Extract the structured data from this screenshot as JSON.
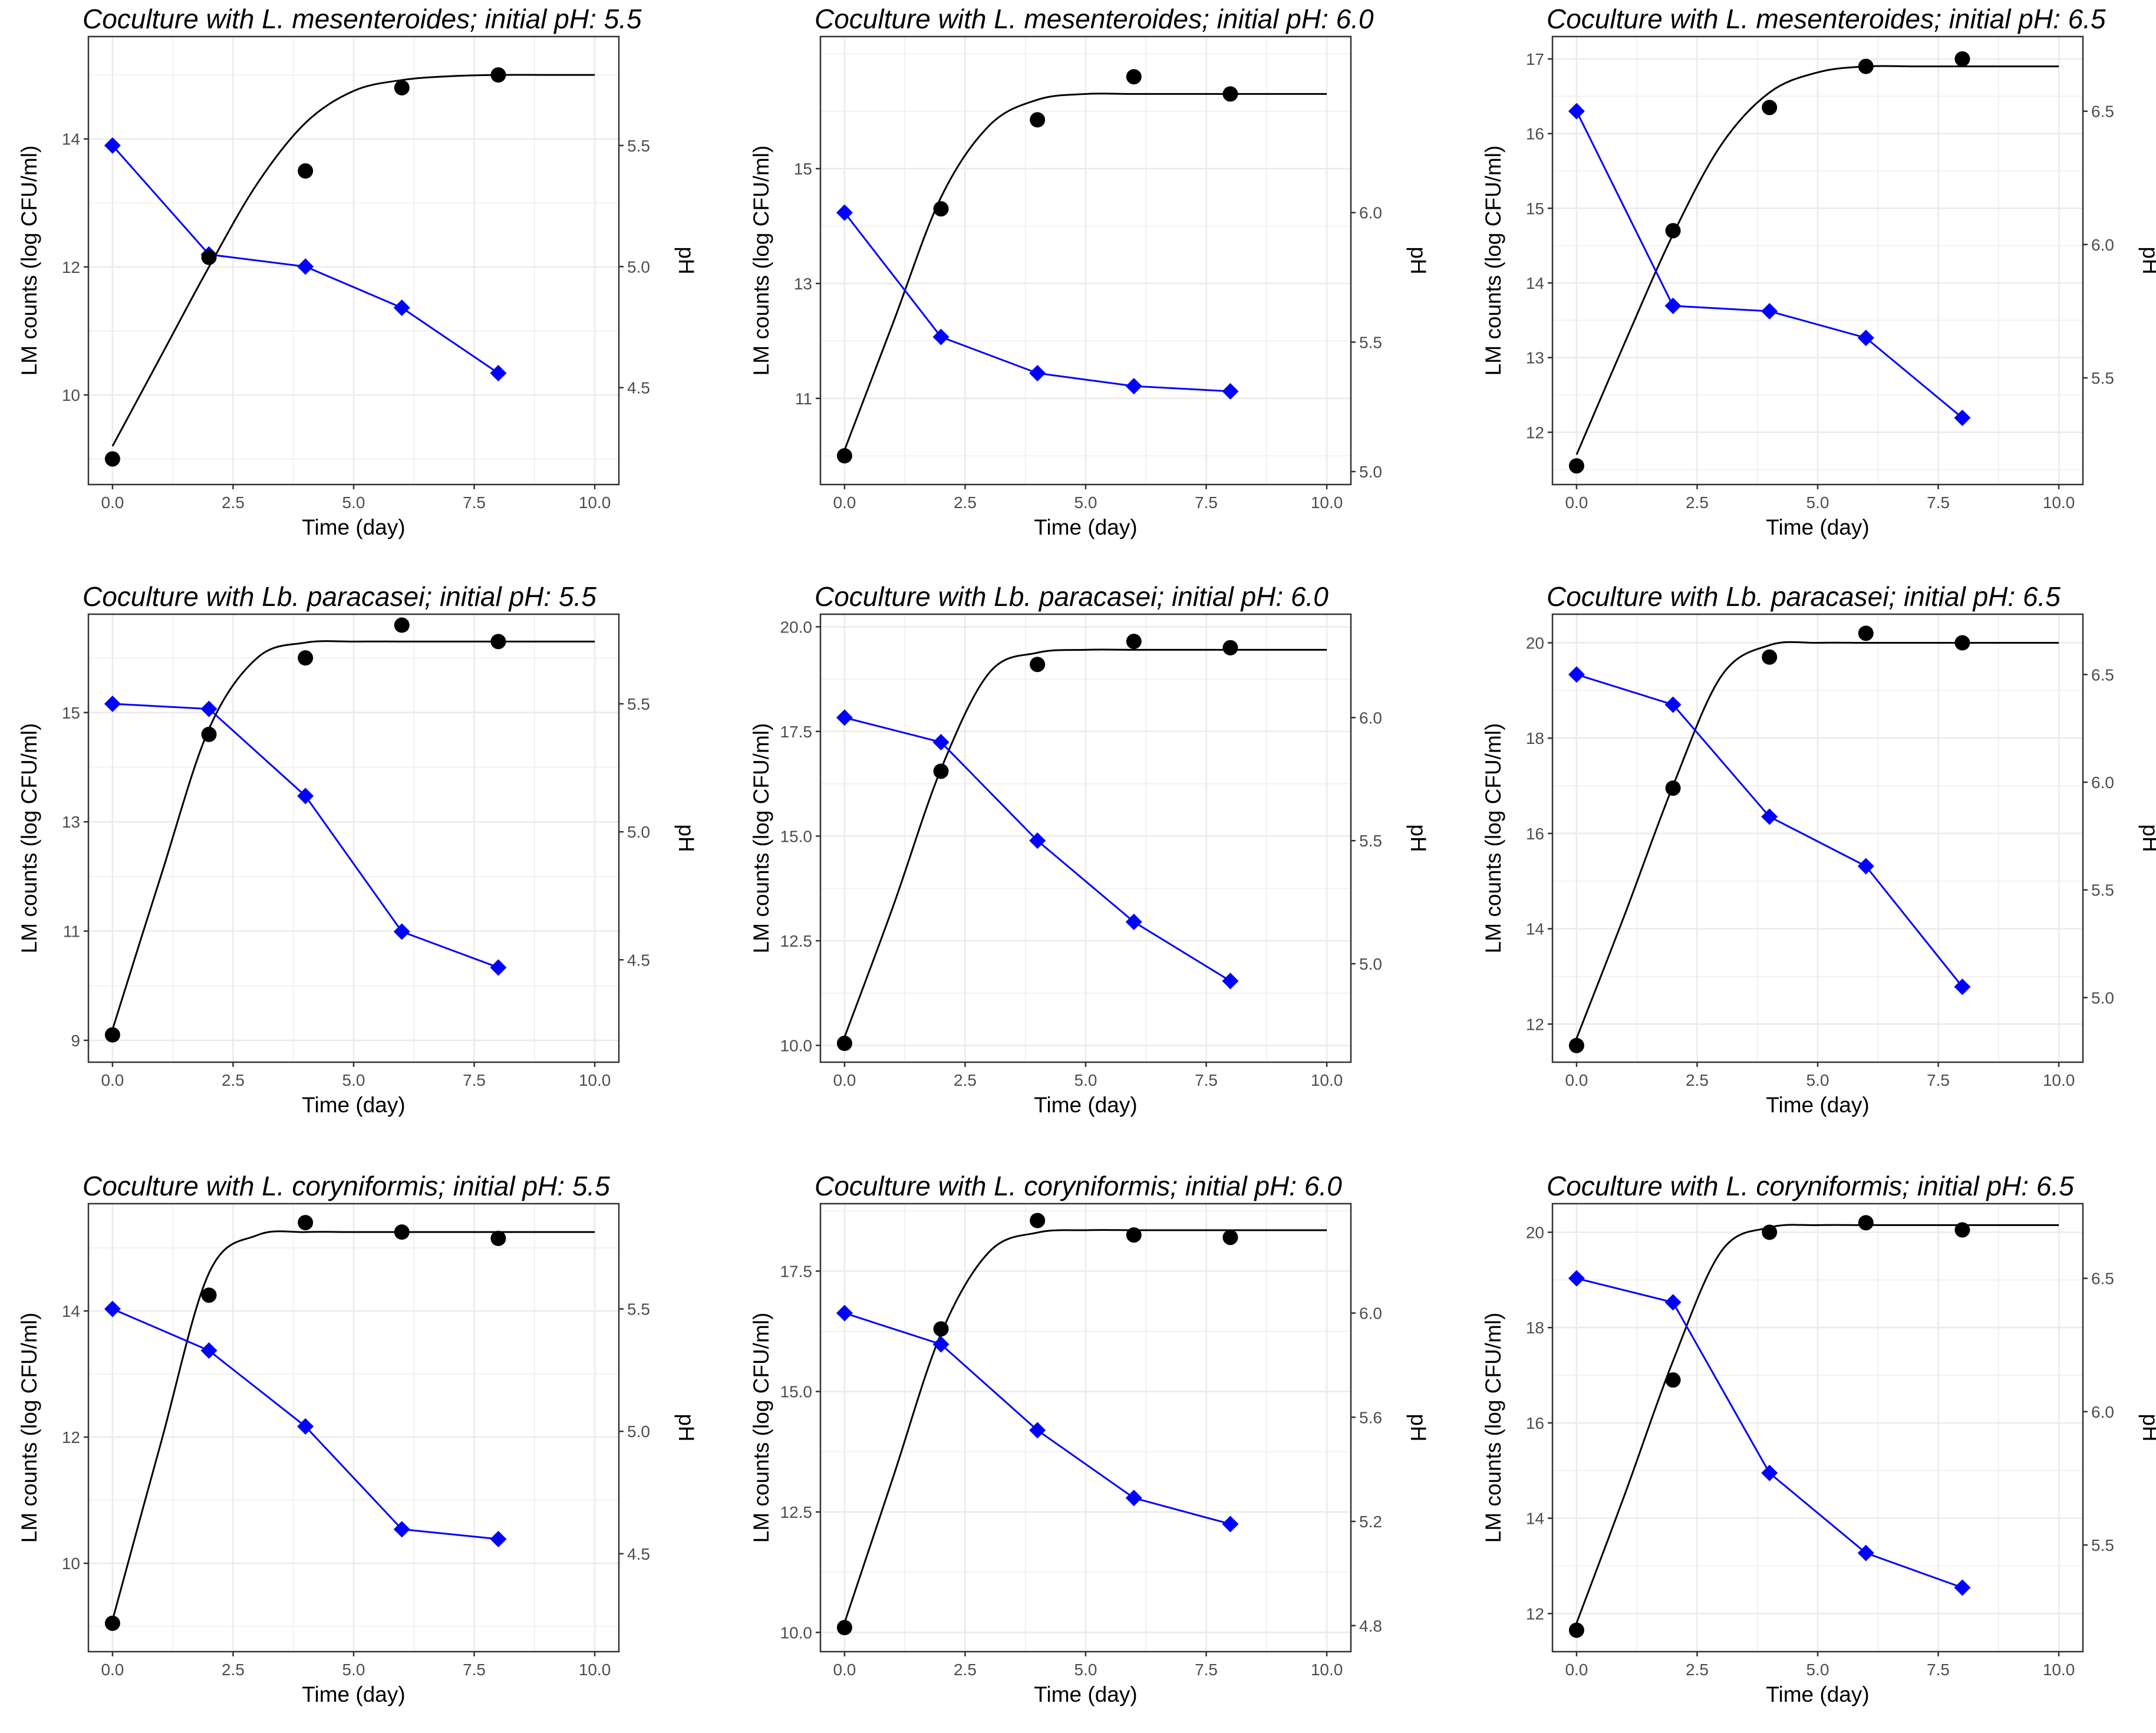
{
  "colors": {
    "count_series": "#000000",
    "ph_series": "#0000ff",
    "grid": "#ebebeb",
    "frame": "#333333"
  },
  "chart_data": [
    {
      "type": "line",
      "title": "Coculture with L. mesenteroides; initial pH: 5.5",
      "xlabel": "Time (day)",
      "ylabel": "LM counts (log CFU/ml)",
      "ylabel_right": "pH",
      "xlim": [
        -0.5,
        10.5
      ],
      "xticks": [
        0.0,
        2.5,
        5.0,
        7.5,
        10.0
      ],
      "xtick_labels": [
        "0.0",
        "2.5",
        "5.0",
        "7.5",
        "10.0"
      ],
      "ylim": [
        8.6,
        15.6
      ],
      "yticks": [
        10,
        12,
        14
      ],
      "ytick_labels": [
        "10",
        "12",
        "14"
      ],
      "y2lim": [
        4.1,
        5.95
      ],
      "y2ticks": [
        4.5,
        5.0,
        5.5
      ],
      "y2tick_labels": [
        "4.5",
        "5.0",
        "5.5"
      ],
      "grid": true,
      "legend": "none",
      "observed_counts": {
        "x": [
          0,
          2,
          4,
          6,
          8
        ],
        "y": [
          9.0,
          12.15,
          13.5,
          14.8,
          15.0
        ]
      },
      "fitted_counts": {
        "x": [
          0,
          1,
          2,
          3,
          4,
          5,
          6,
          7,
          8,
          9,
          10
        ],
        "y": [
          9.2,
          10.6,
          12.0,
          13.3,
          14.25,
          14.75,
          14.92,
          14.98,
          15.0,
          15.0,
          15.0
        ]
      },
      "ph": {
        "x": [
          0,
          2,
          4,
          6,
          8
        ],
        "y": [
          5.5,
          5.05,
          5.0,
          4.83,
          4.56
        ]
      }
    },
    {
      "type": "line",
      "title": "Coculture with L. mesenteroides; initial pH: 6.0",
      "xlabel": "Time (day)",
      "ylabel": "LM counts (log CFU/ml)",
      "ylabel_right": "pH",
      "xlim": [
        -0.5,
        10.5
      ],
      "xticks": [
        0.0,
        2.5,
        5.0,
        7.5,
        10.0
      ],
      "xtick_labels": [
        "0.0",
        "2.5",
        "5.0",
        "7.5",
        "10.0"
      ],
      "ylim": [
        9.5,
        17.3
      ],
      "yticks": [
        11,
        13,
        15
      ],
      "ytick_labels": [
        "11",
        "13",
        "15"
      ],
      "y2lim": [
        4.95,
        6.68
      ],
      "y2ticks": [
        5.0,
        5.5,
        6.0
      ],
      "y2tick_labels": [
        "5.0",
        "5.5",
        "6.0"
      ],
      "grid": true,
      "legend": "none",
      "observed_counts": {
        "x": [
          0,
          2,
          4,
          6,
          8
        ],
        "y": [
          10.0,
          14.3,
          15.85,
          16.6,
          16.3
        ]
      },
      "fitted_counts": {
        "x": [
          0,
          1,
          2,
          3,
          4,
          5,
          6,
          7,
          8,
          9,
          10
        ],
        "y": [
          10.1,
          12.3,
          14.5,
          15.75,
          16.2,
          16.3,
          16.3,
          16.3,
          16.3,
          16.3,
          16.3
        ]
      },
      "ph": {
        "x": [
          0,
          2,
          4,
          6,
          8
        ],
        "y": [
          6.0,
          5.52,
          5.38,
          5.33,
          5.31
        ]
      }
    },
    {
      "type": "line",
      "title": "Coculture with L. mesenteroides; initial pH: 6.5",
      "xlabel": "Time (day)",
      "ylabel": "LM counts (log CFU/ml)",
      "ylabel_right": "pH",
      "xlim": [
        -0.5,
        10.5
      ],
      "xticks": [
        0.0,
        2.5,
        5.0,
        7.5,
        10.0
      ],
      "xtick_labels": [
        "0.0",
        "2.5",
        "5.0",
        "7.5",
        "10.0"
      ],
      "ylim": [
        11.3,
        17.3
      ],
      "yticks": [
        12,
        13,
        14,
        15,
        16,
        17
      ],
      "ytick_labels": [
        "12",
        "13",
        "14",
        "15",
        "16",
        "17"
      ],
      "y2lim": [
        5.1,
        6.78
      ],
      "y2ticks": [
        5.5,
        6.0,
        6.5
      ],
      "y2tick_labels": [
        "5.5",
        "6.0",
        "6.5"
      ],
      "grid": true,
      "legend": "none",
      "observed_counts": {
        "x": [
          0,
          2,
          4,
          6,
          8
        ],
        "y": [
          11.55,
          14.7,
          16.35,
          16.9,
          17.0
        ]
      },
      "fitted_counts": {
        "x": [
          0,
          1,
          2,
          3,
          4,
          5,
          6,
          7,
          8,
          9,
          10
        ],
        "y": [
          11.7,
          13.2,
          14.65,
          15.85,
          16.55,
          16.82,
          16.9,
          16.9,
          16.9,
          16.9,
          16.9
        ]
      },
      "ph": {
        "x": [
          0,
          2,
          4,
          6,
          8
        ],
        "y": [
          6.5,
          5.77,
          5.75,
          5.65,
          5.35
        ]
      }
    },
    {
      "type": "line",
      "title": "Coculture with Lb. paracasei; initial pH: 5.5",
      "xlabel": "Time (day)",
      "ylabel": "LM counts (log CFU/ml)",
      "ylabel_right": "pH",
      "xlim": [
        -0.5,
        10.5
      ],
      "xticks": [
        0.0,
        2.5,
        5.0,
        7.5,
        10.0
      ],
      "xtick_labels": [
        "0.0",
        "2.5",
        "5.0",
        "7.5",
        "10.0"
      ],
      "ylim": [
        8.6,
        16.8
      ],
      "yticks": [
        9,
        11,
        13,
        15
      ],
      "ytick_labels": [
        "9",
        "11",
        "13",
        "15"
      ],
      "y2lim": [
        4.1,
        5.85
      ],
      "y2ticks": [
        4.5,
        5.0,
        5.5
      ],
      "y2tick_labels": [
        "4.5",
        "5.0",
        "5.5"
      ],
      "grid": true,
      "legend": "none",
      "observed_counts": {
        "x": [
          0,
          2,
          4,
          6,
          8
        ],
        "y": [
          9.1,
          14.6,
          16.0,
          16.6,
          16.3
        ]
      },
      "fitted_counts": {
        "x": [
          0,
          1,
          2,
          3,
          4,
          5,
          6,
          7,
          8,
          9,
          10
        ],
        "y": [
          9.2,
          12.0,
          14.7,
          16.0,
          16.28,
          16.3,
          16.3,
          16.3,
          16.3,
          16.3,
          16.3
        ]
      },
      "ph": {
        "x": [
          0,
          2,
          4,
          6,
          8
        ],
        "y": [
          5.5,
          5.48,
          5.14,
          4.61,
          4.47
        ]
      }
    },
    {
      "type": "line",
      "title": "Coculture with Lb. paracasei; initial pH: 6.0",
      "xlabel": "Time (day)",
      "ylabel": "LM counts (log CFU/ml)",
      "ylabel_right": "pH",
      "xlim": [
        -0.5,
        10.5
      ],
      "xticks": [
        0.0,
        2.5,
        5.0,
        7.5,
        10.0
      ],
      "xtick_labels": [
        "0.0",
        "2.5",
        "5.0",
        "7.5",
        "10.0"
      ],
      "ylim": [
        9.6,
        20.3
      ],
      "yticks": [
        10.0,
        12.5,
        15.0,
        17.5,
        20.0
      ],
      "ytick_labels": [
        "10.0",
        "12.5",
        "15.0",
        "17.5",
        "20.0"
      ],
      "y2lim": [
        4.6,
        6.42
      ],
      "y2ticks": [
        5.0,
        5.5,
        6.0
      ],
      "y2tick_labels": [
        "5.0",
        "5.5",
        "6.0"
      ],
      "grid": true,
      "legend": "none",
      "observed_counts": {
        "x": [
          0,
          2,
          4,
          6,
          8
        ],
        "y": [
          10.05,
          16.55,
          19.1,
          19.65,
          19.5
        ]
      },
      "fitted_counts": {
        "x": [
          0,
          1,
          2,
          3,
          4,
          5,
          6,
          7,
          8,
          9,
          10
        ],
        "y": [
          10.2,
          13.3,
          16.6,
          18.9,
          19.38,
          19.45,
          19.45,
          19.45,
          19.45,
          19.45,
          19.45
        ]
      },
      "ph": {
        "x": [
          0,
          2,
          4,
          6,
          8
        ],
        "y": [
          6.0,
          5.9,
          5.5,
          5.17,
          4.93
        ]
      }
    },
    {
      "type": "line",
      "title": "Coculture with Lb. paracasei; initial pH: 6.5",
      "xlabel": "Time (day)",
      "ylabel": "LM counts (log CFU/ml)",
      "ylabel_right": "pH",
      "xlim": [
        -0.5,
        10.5
      ],
      "xticks": [
        0.0,
        2.5,
        5.0,
        7.5,
        10.0
      ],
      "xtick_labels": [
        "0.0",
        "2.5",
        "5.0",
        "7.5",
        "10.0"
      ],
      "ylim": [
        11.2,
        20.6
      ],
      "yticks": [
        12,
        14,
        16,
        18,
        20
      ],
      "ytick_labels": [
        "12",
        "14",
        "16",
        "18",
        "20"
      ],
      "y2lim": [
        4.7,
        6.78
      ],
      "y2ticks": [
        5.0,
        5.5,
        6.0,
        6.5
      ],
      "y2tick_labels": [
        "5.0",
        "5.5",
        "6.0",
        "6.5"
      ],
      "grid": true,
      "legend": "none",
      "observed_counts": {
        "x": [
          0,
          2,
          4,
          6,
          8
        ],
        "y": [
          11.55,
          16.95,
          19.7,
          20.2,
          20.0
        ]
      },
      "fitted_counts": {
        "x": [
          0,
          1,
          2,
          3,
          4,
          5,
          6,
          7,
          8,
          9,
          10
        ],
        "y": [
          11.7,
          14.3,
          17.0,
          19.3,
          19.95,
          20.0,
          20.0,
          20.0,
          20.0,
          20.0,
          20.0
        ]
      },
      "ph": {
        "x": [
          0,
          2,
          4,
          6,
          8
        ],
        "y": [
          6.5,
          6.36,
          5.84,
          5.61,
          5.05
        ]
      }
    },
    {
      "type": "line",
      "title": "Coculture with L. coryniformis; initial pH: 5.5",
      "xlabel": "Time (day)",
      "ylabel": "LM counts (log CFU/ml)",
      "ylabel_right": "pH",
      "xlim": [
        -0.5,
        10.5
      ],
      "xticks": [
        0.0,
        2.5,
        5.0,
        7.5,
        10.0
      ],
      "xtick_labels": [
        "0.0",
        "2.5",
        "5.0",
        "7.5",
        "10.0"
      ],
      "ylim": [
        8.6,
        15.7
      ],
      "yticks": [
        10,
        12,
        14
      ],
      "ytick_labels": [
        "10",
        "12",
        "14"
      ],
      "y2lim": [
        4.1,
        5.93
      ],
      "y2ticks": [
        4.5,
        5.0,
        5.5
      ],
      "y2tick_labels": [
        "4.5",
        "5.0",
        "5.5"
      ],
      "grid": true,
      "legend": "none",
      "observed_counts": {
        "x": [
          0,
          2,
          4,
          6,
          8
        ],
        "y": [
          9.05,
          14.25,
          15.4,
          15.25,
          15.15
        ]
      },
      "fitted_counts": {
        "x": [
          0,
          1,
          2,
          3,
          4,
          5,
          6,
          7,
          8,
          9,
          10
        ],
        "y": [
          9.1,
          11.9,
          14.6,
          15.2,
          15.25,
          15.25,
          15.25,
          15.25,
          15.25,
          15.25,
          15.25
        ]
      },
      "ph": {
        "x": [
          0,
          2,
          4,
          6,
          8
        ],
        "y": [
          5.5,
          5.33,
          5.02,
          4.6,
          4.56
        ]
      }
    },
    {
      "type": "line",
      "title": "Coculture with L. coryniformis; initial pH: 6.0",
      "xlabel": "Time (day)",
      "ylabel": "LM counts (log CFU/ml)",
      "ylabel_right": "pH",
      "xlim": [
        -0.5,
        10.5
      ],
      "xticks": [
        0.0,
        2.5,
        5.0,
        7.5,
        10.0
      ],
      "xtick_labels": [
        "0.0",
        "2.5",
        "5.0",
        "7.5",
        "10.0"
      ],
      "ylim": [
        9.6,
        18.9
      ],
      "yticks": [
        10.0,
        12.5,
        15.0,
        17.5
      ],
      "ytick_labels": [
        "10.0",
        "12.5",
        "15.0",
        "17.5"
      ],
      "y2lim": [
        4.7,
        6.42
      ],
      "y2ticks": [
        4.8,
        5.2,
        5.6,
        6.0
      ],
      "y2tick_labels": [
        "4.8",
        "5.2",
        "5.6",
        "6.0"
      ],
      "grid": true,
      "legend": "none",
      "observed_counts": {
        "x": [
          0,
          2,
          4,
          6,
          8
        ],
        "y": [
          10.1,
          16.3,
          18.55,
          18.25,
          18.2
        ]
      },
      "fitted_counts": {
        "x": [
          0,
          1,
          2,
          3,
          4,
          5,
          6,
          7,
          8,
          9,
          10
        ],
        "y": [
          10.2,
          13.2,
          16.2,
          17.9,
          18.3,
          18.35,
          18.35,
          18.35,
          18.35,
          18.35,
          18.35
        ]
      },
      "ph": {
        "x": [
          0,
          2,
          4,
          6,
          8
        ],
        "y": [
          6.0,
          5.88,
          5.55,
          5.29,
          5.19
        ]
      }
    },
    {
      "type": "line",
      "title": "Coculture with L. coryniformis; initial pH: 6.5",
      "xlabel": "Time (day)",
      "ylabel": "LM counts (log CFU/ml)",
      "ylabel_right": "pH",
      "xlim": [
        -0.5,
        10.5
      ],
      "xticks": [
        0.0,
        2.5,
        5.0,
        7.5,
        10.0
      ],
      "xtick_labels": [
        "0.0",
        "2.5",
        "5.0",
        "7.5",
        "10.0"
      ],
      "ylim": [
        11.2,
        20.6
      ],
      "yticks": [
        12,
        14,
        16,
        18,
        20
      ],
      "ytick_labels": [
        "12",
        "14",
        "16",
        "18",
        "20"
      ],
      "y2lim": [
        5.1,
        6.78
      ],
      "y2ticks": [
        5.5,
        6.0,
        6.5
      ],
      "y2tick_labels": [
        "5.5",
        "6.0",
        "6.5"
      ],
      "grid": true,
      "legend": "none",
      "observed_counts": {
        "x": [
          0,
          2,
          4,
          6,
          8
        ],
        "y": [
          11.65,
          16.9,
          20.0,
          20.2,
          20.05
        ]
      },
      "fitted_counts": {
        "x": [
          0,
          1,
          2,
          3,
          4,
          5,
          6,
          7,
          8,
          9,
          10
        ],
        "y": [
          11.8,
          14.5,
          17.3,
          19.6,
          20.1,
          20.15,
          20.15,
          20.15,
          20.15,
          20.15,
          20.15
        ]
      },
      "ph": {
        "x": [
          0,
          2,
          4,
          6,
          8
        ],
        "y": [
          6.5,
          6.41,
          5.77,
          5.47,
          5.34
        ]
      }
    }
  ]
}
